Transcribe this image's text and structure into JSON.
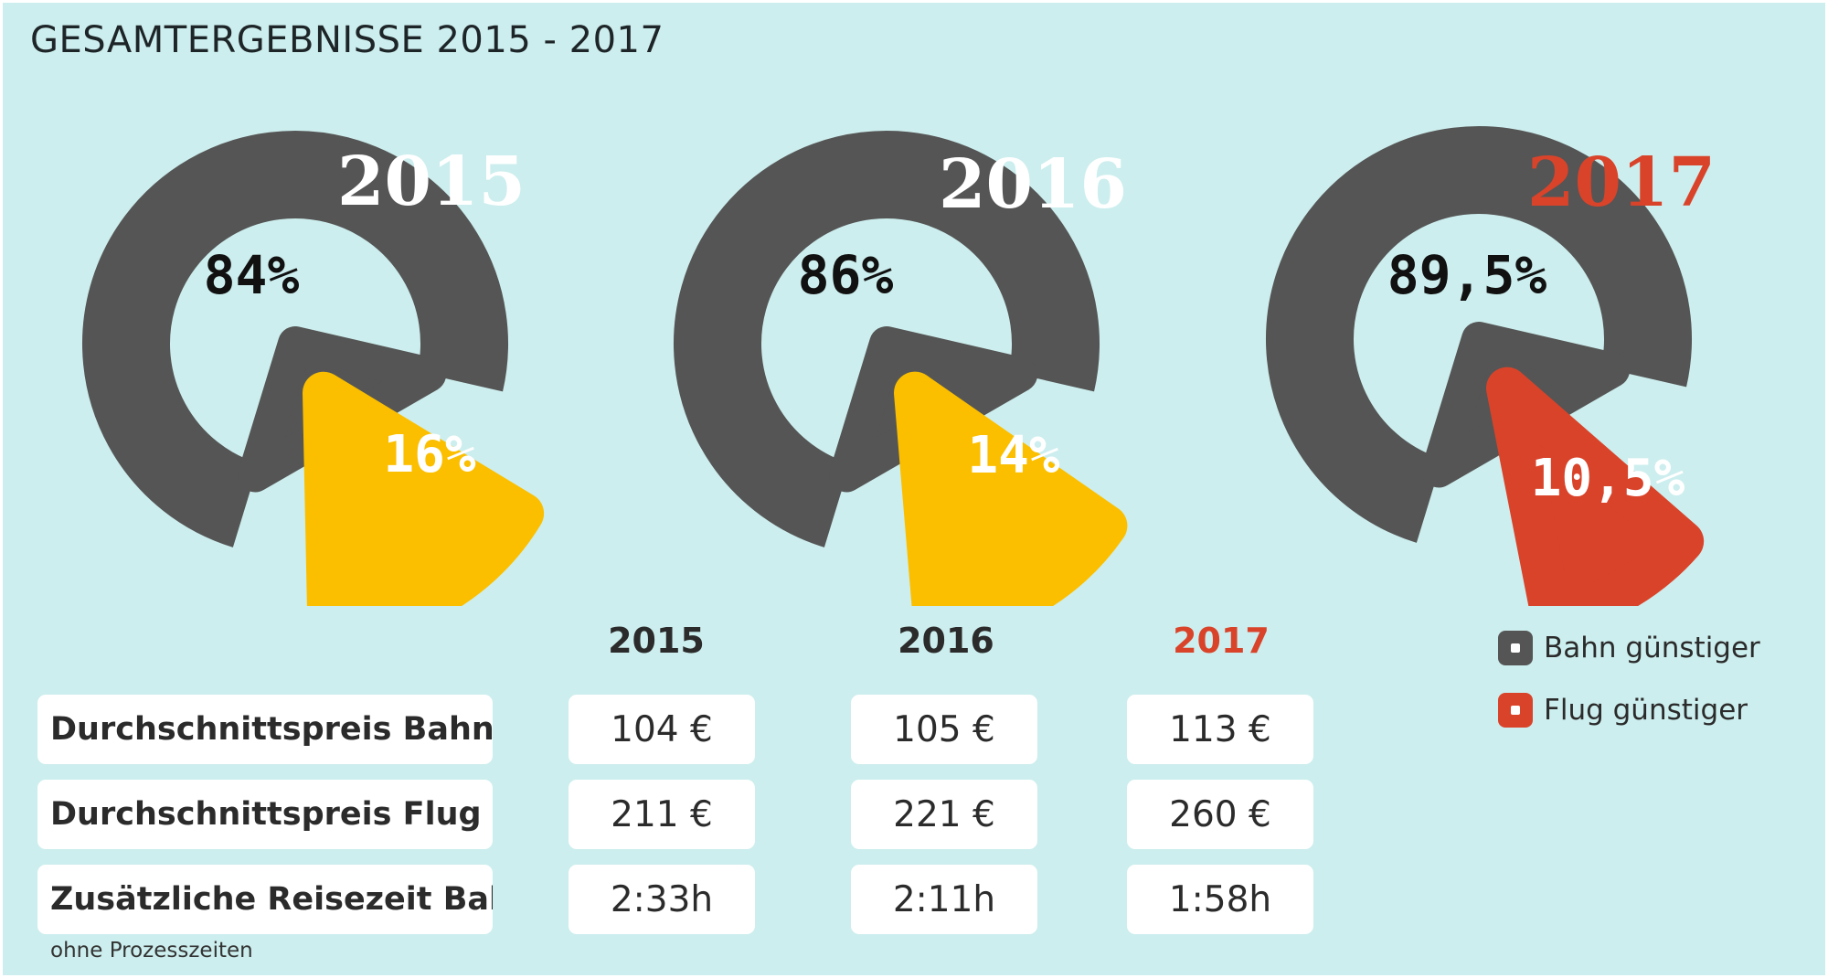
{
  "title": "GESAMTERGEBNISSE 2015 - 2017",
  "colors": {
    "background": "#cdeeee",
    "bahn": "#555555",
    "flug_2015": "#fbbf00",
    "flug_2016": "#fbbf00",
    "flug_2017": "#d9432a",
    "year_white": "#ffffff",
    "year_red": "#d9432a",
    "header_dark": "#2b2b2b"
  },
  "chart_data": [
    {
      "type": "pie",
      "title": "2015",
      "series": [
        {
          "name": "Bahn günstiger",
          "value": 84,
          "label": "84%"
        },
        {
          "name": "Flug günstiger",
          "value": 16,
          "label": "16%"
        }
      ]
    },
    {
      "type": "pie",
      "title": "2016",
      "series": [
        {
          "name": "Bahn günstiger",
          "value": 86,
          "label": "86%"
        },
        {
          "name": "Flug günstiger",
          "value": 14,
          "label": "14%"
        }
      ]
    },
    {
      "type": "pie",
      "title": "2017",
      "series": [
        {
          "name": "Bahn günstiger",
          "value": 89.5,
          "label": "89,5%"
        },
        {
          "name": "Flug günstiger",
          "value": 10.5,
          "label": "10,5%"
        }
      ]
    },
    {
      "type": "table",
      "columns": [
        "2015",
        "2016",
        "2017"
      ],
      "rows": [
        {
          "label": "Durchschnittspreis Bahn",
          "values": [
            "104 €",
            "105 €",
            "113 €"
          ]
        },
        {
          "label": "Durchschnittspreis Flug",
          "values": [
            "211 €",
            "221 €",
            "260 €"
          ]
        },
        {
          "label": "Zusätzliche Reisezeit Bahn",
          "values": [
            "2:33h",
            "2:11h",
            "1:58h"
          ]
        }
      ]
    }
  ],
  "legend": [
    {
      "label": "Bahn günstiger",
      "color": "#555555"
    },
    {
      "label": "Flug günstiger",
      "color": "#d9432a"
    }
  ],
  "footnote": "ohne Prozesszeiten"
}
